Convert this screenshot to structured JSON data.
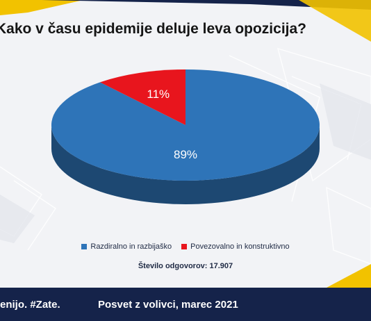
{
  "colors": {
    "accent_yellow": "#f2c200",
    "footer_navy": "#15234a",
    "slice_blue": "#2e74b8",
    "slice_red": "#e8151d"
  },
  "chart_data": {
    "type": "pie",
    "title": "Kako v času epidemije deluje leva opozicija?",
    "slices": [
      {
        "label": "Razdiralno in razbijaško",
        "value": 89,
        "display": "89%",
        "color": "#2e74b8"
      },
      {
        "label": "Povezovalno in konstruktivno",
        "value": 11,
        "display": "11%",
        "color": "#e8151d"
      }
    ],
    "legend_position": "bottom",
    "note": "Število odgovorov: 17.907"
  },
  "footer": {
    "slogan": "enijo. #Zate.",
    "event": "Posvet z volivci, marec 2021"
  }
}
